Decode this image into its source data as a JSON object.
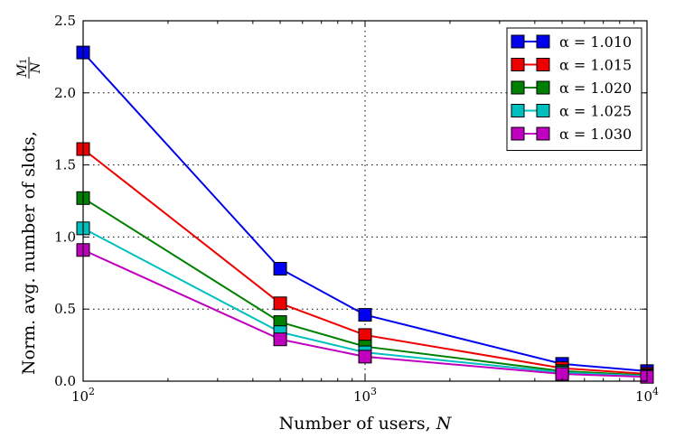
{
  "chart_data": {
    "type": "line",
    "title": "",
    "xlabel": "Number of users, N",
    "ylabel": "Norm. avg. number of slots, M1/N",
    "xlabel_parts": {
      "text": "Number of users, ",
      "var": "N"
    },
    "ylabel_parts": {
      "text": "Norm. avg. number of slots, ",
      "num": "M",
      "num_sub": "1",
      "den": "N"
    },
    "xscale": "log",
    "xlim": [
      100,
      10000
    ],
    "ylim": [
      0,
      2.5
    ],
    "x": [
      100,
      500,
      1000,
      5000,
      10000
    ],
    "x_ticks": [
      {
        "value": 100,
        "base": "10",
        "exp": "2"
      },
      {
        "value": 1000,
        "base": "10",
        "exp": "3"
      },
      {
        "value": 10000,
        "base": "10",
        "exp": "4"
      }
    ],
    "y_ticks": [
      "0.0",
      "0.5",
      "1.0",
      "1.5",
      "2.0",
      "2.5"
    ],
    "grid": true,
    "legend_position": "top-right",
    "series": [
      {
        "name": "α = 1.010",
        "color": "#0000ee",
        "values": [
          2.28,
          0.78,
          0.46,
          0.12,
          0.07
        ]
      },
      {
        "name": "α = 1.015",
        "color": "#ee0000",
        "values": [
          1.61,
          0.54,
          0.32,
          0.09,
          0.05
        ]
      },
      {
        "name": "α = 1.020",
        "color": "#008000",
        "values": [
          1.27,
          0.41,
          0.24,
          0.07,
          0.04
        ]
      },
      {
        "name": "α = 1.025",
        "color": "#00bfbf",
        "values": [
          1.06,
          0.34,
          0.2,
          0.06,
          0.035
        ]
      },
      {
        "name": "α = 1.030",
        "color": "#bf00bf",
        "values": [
          0.91,
          0.29,
          0.17,
          0.05,
          0.03
        ]
      }
    ]
  }
}
